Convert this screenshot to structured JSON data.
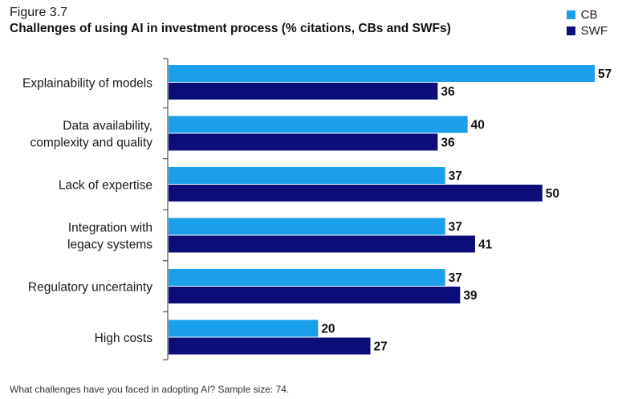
{
  "figure_label": "Figure 3.7",
  "footnote": "What challenges have you faced in adopting AI? Sample size: 74.",
  "colors": {
    "cb": "#1a9fea",
    "swf": "#0d0d7a",
    "axis": "#333333"
  },
  "chart_data": {
    "type": "bar",
    "orientation": "horizontal",
    "title": "Challenges of using AI in investment process (% citations, CBs and SWFs)",
    "categories": [
      [
        "Explainability of models"
      ],
      [
        "Data availability,",
        "complexity and quality"
      ],
      [
        "Lack of expertise"
      ],
      [
        "Integration with",
        "legacy systems"
      ],
      [
        "Regulatory uncertainty"
      ],
      [
        "High costs"
      ]
    ],
    "series": [
      {
        "name": "CB",
        "values": [
          57,
          40,
          37,
          37,
          37,
          20
        ]
      },
      {
        "name": "SWF",
        "values": [
          36,
          36,
          50,
          41,
          39,
          27
        ]
      }
    ],
    "xlim": [
      0,
      57
    ],
    "legend_position": "top-right",
    "grid": false,
    "data_labels": true
  }
}
